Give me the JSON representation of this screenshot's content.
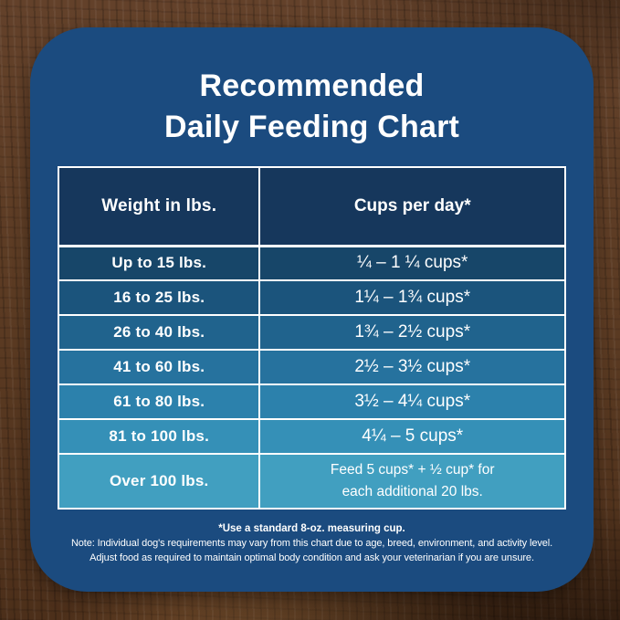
{
  "card": {
    "title_line1": "Recommended",
    "title_line2": "Daily Feeding Chart"
  },
  "table": {
    "header_weight": "Weight in lbs.",
    "header_cups": "Cups per day*",
    "rows": [
      {
        "weight": "Up to 15 lbs.",
        "cups": "¼ – 1 ¼ cups*",
        "bg": "#174669"
      },
      {
        "weight": "16 to 25 lbs.",
        "cups": "1¼ – 1¾ cups*",
        "bg": "#1b547c"
      },
      {
        "weight": "26 to 40 lbs.",
        "cups": "1¾ – 2½ cups*",
        "bg": "#20638d"
      },
      {
        "weight": "41 to 60 lbs.",
        "cups": "2½ – 3½ cups*",
        "bg": "#26729e"
      },
      {
        "weight": "61 to 80 lbs.",
        "cups": "3½ – 4¼ cups*",
        "bg": "#2c81ac"
      },
      {
        "weight": "81 to 100 lbs.",
        "cups": "4¼ – 5 cups*",
        "bg": "#3590b7"
      },
      {
        "weight": "Over 100 lbs.",
        "cups": "Feed 5 cups* + ½ cup* for\neach additional 20 lbs.",
        "bg": "#419fc0"
      }
    ]
  },
  "notes": {
    "measuring": "*Use a standard 8-oz. measuring cup.",
    "line1": "Note: Individual dog's requirements may vary from this chart due to age, breed, environment, and activity level.",
    "line2": "Adjust food as required to maintain optimal body condition and ask your veterinarian if you are unsure."
  },
  "colors": {
    "card_background": "#1b4b7f",
    "header_background": "#16375c",
    "border": "#ffffff",
    "text": "#ffffff",
    "wood_base": "#5a3a21"
  },
  "chart_data": {
    "type": "table",
    "title": "Recommended Daily Feeding Chart",
    "columns": [
      "Weight in lbs.",
      "Cups per day*"
    ],
    "rows": [
      [
        "Up to 15 lbs.",
        "¼ – 1 ¼ cups*"
      ],
      [
        "16 to 25 lbs.",
        "1¼ – 1¾ cups*"
      ],
      [
        "26 to 40 lbs.",
        "1¾ – 2½ cups*"
      ],
      [
        "41 to 60 lbs.",
        "2½ – 3½ cups*"
      ],
      [
        "61 to 80 lbs.",
        "3½ – 4¼ cups*"
      ],
      [
        "81 to 100 lbs.",
        "4¼ – 5 cups*"
      ],
      [
        "Over 100 lbs.",
        "Feed 5 cups* + ½ cup* for each additional 20 lbs."
      ]
    ],
    "notes": [
      "*Use a standard 8-oz. measuring cup.",
      "Note: Individual dog's requirements may vary from this chart due to age, breed, environment, and activity level.",
      "Adjust food as required to maintain optimal body condition and ask your veterinarian if you are unsure."
    ],
    "row_gradient": [
      "#174669",
      "#1b547c",
      "#20638d",
      "#26729e",
      "#2c81ac",
      "#3590b7",
      "#419fc0"
    ]
  }
}
